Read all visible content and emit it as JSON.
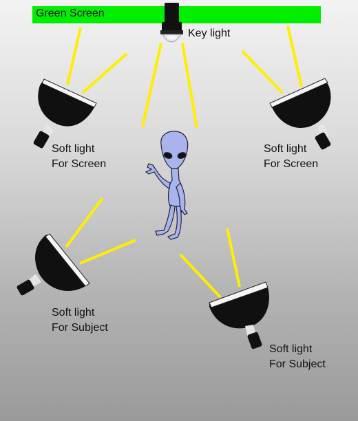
{
  "green_screen": {
    "label": "Green Screen",
    "color": "#00ee00"
  },
  "key_light": {
    "label": "Key light"
  },
  "lights": {
    "screen_left": {
      "line1": "Soft light",
      "line2": "For Screen"
    },
    "screen_right": {
      "line1": "Soft light",
      "line2": "For Screen"
    },
    "subject_left": {
      "line1": "Soft light",
      "line2": "For Subject"
    },
    "subject_right": {
      "line1": "Soft light",
      "line2": "For Subject"
    }
  },
  "colors": {
    "beam": "#ffee00",
    "lamp_body": "#111111",
    "alien_skin": "#a9b4ee"
  },
  "icons": {
    "subject": "alien-figure-icon",
    "light": "softbox-lamp-icon",
    "key": "spotlight-lamp-icon"
  }
}
